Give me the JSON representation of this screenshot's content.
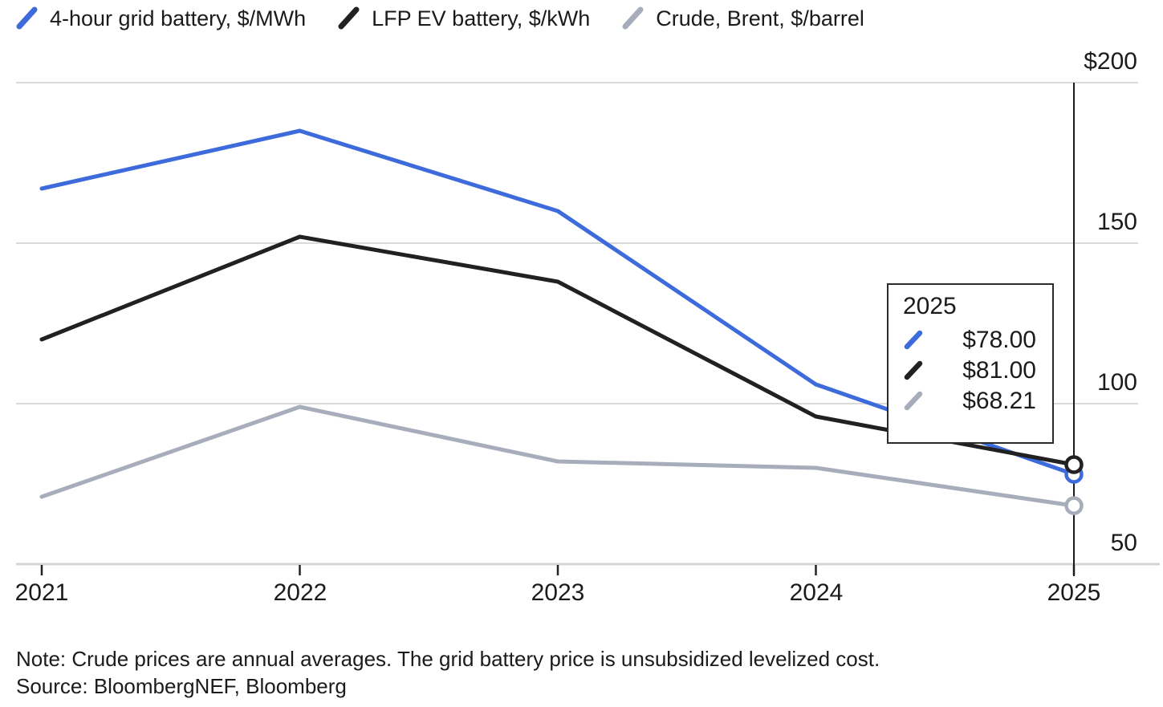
{
  "legend": {
    "items": [
      {
        "label": "4-hour grid battery, $/MWh",
        "color": "#3d6bdc"
      },
      {
        "label": "LFP EV battery, $/kWh",
        "color": "#212121"
      },
      {
        "label": "Crude, Brent, $/barrel",
        "color": "#a8adbc"
      }
    ]
  },
  "chart_data": {
    "type": "line",
    "x": [
      2021,
      2022,
      2023,
      2024,
      2025
    ],
    "series": [
      {
        "name": "4-hour grid battery, $/MWh",
        "color": "#3d6bdc",
        "values": [
          167,
          185,
          160,
          106,
          78
        ]
      },
      {
        "name": "LFP EV battery, $/kWh",
        "color": "#212121",
        "values": [
          120,
          152,
          138,
          96,
          81
        ]
      },
      {
        "name": "Crude, Brent, $/barrel",
        "color": "#a8adbc",
        "values": [
          71,
          99,
          82,
          80,
          68.21
        ]
      }
    ],
    "ylim": [
      50,
      200
    ],
    "yticks": [
      200,
      150,
      100,
      50
    ],
    "ytick_labels": [
      "$200",
      "150",
      "100",
      "50"
    ],
    "xtick_labels": [
      "2021",
      "2022",
      "2023",
      "2024",
      "2025"
    ],
    "grid": "horizontal",
    "legend_position": "top",
    "hover": {
      "year": 2025,
      "crosshair": true,
      "end_markers": true
    },
    "colors": {
      "gridline": "#d9d9d9",
      "axis_line": "#d4d4d4",
      "tick": "#222222",
      "crosshair": "#1b1b1b"
    }
  },
  "axis": {
    "y_labels": [
      "$200",
      "150",
      "100",
      "50"
    ],
    "x_labels": [
      "2021",
      "2022",
      "2023",
      "2024",
      "2025"
    ]
  },
  "tooltip": {
    "title": "2025",
    "rows": [
      {
        "value": "$78.00",
        "color": "#3d6bdc"
      },
      {
        "value": "$81.00",
        "color": "#212121"
      },
      {
        "value": "$68.21",
        "color": "#a8adbc"
      }
    ]
  },
  "footer": {
    "note": "Note: Crude prices are annual averages. The grid battery price is unsubsidized levelized cost.",
    "source": "Source: BloombergNEF, Bloomberg"
  }
}
